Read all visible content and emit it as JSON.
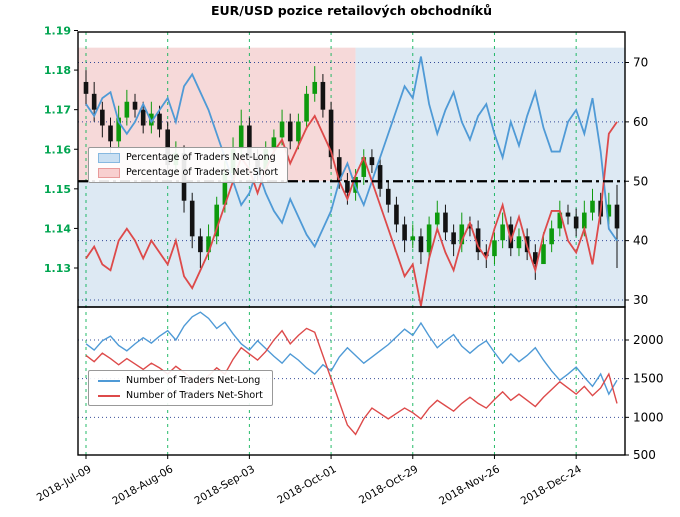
{
  "chart_data": {
    "type": "candlestick+line",
    "title": "EUR/USD pozice retailových obchodníků",
    "x_ticks": {
      "indices": [
        0,
        10,
        20,
        30,
        40,
        50,
        60
      ],
      "labels": [
        "2018-Jul-09",
        "2018-Aug-06",
        "2018-Sep-03",
        "2018-Oct-01",
        "2018-Oct-29",
        "2018-Nov-26",
        "2018-Dec-24"
      ]
    },
    "grid": {
      "v_color": "#00b050",
      "h_color": "#223a8f"
    },
    "top_panel": {
      "price_axis": {
        "side": "left",
        "tick_labels": [
          "1.19",
          "1.18",
          "1.17",
          "1.16",
          "1.15",
          "1.14",
          "1.13"
        ],
        "range": [
          1.12,
          1.19
        ],
        "color": "#00a550"
      },
      "pct_axis": {
        "side": "right",
        "tick_labels": [
          "70",
          "60",
          "50",
          "40",
          "30"
        ],
        "range": [
          30,
          70
        ]
      },
      "threshold": 50,
      "shading": {
        "split_index": 33,
        "above_left": "#f6d9d9",
        "above_right": "#dde9f3",
        "below": "#dde9f3"
      },
      "candles": {
        "up_color": "#0d9a0d",
        "down_color": "#131313",
        "open": [
          1.177,
          1.174,
          1.17,
          1.166,
          1.162,
          1.168,
          1.172,
          1.17,
          1.166,
          1.169,
          1.165,
          1.156,
          1.159,
          1.147,
          1.138,
          1.134,
          1.138,
          1.146,
          1.154,
          1.16,
          1.166,
          1.158,
          1.155,
          1.16,
          1.163,
          1.167,
          1.162,
          1.167,
          1.174,
          1.177,
          1.17,
          1.158,
          1.152,
          1.149,
          1.153,
          1.158,
          1.156,
          1.15,
          1.146,
          1.141,
          1.137,
          1.138,
          1.134,
          1.141,
          1.144,
          1.139,
          1.136,
          1.141,
          1.14,
          1.134,
          1.133,
          1.137,
          1.141,
          1.135,
          1.138,
          1.134,
          1.131,
          1.136,
          1.14,
          1.144,
          1.143,
          1.14,
          1.144,
          1.147,
          1.143,
          1.146
        ],
        "high": [
          1.18,
          1.177,
          1.172,
          1.168,
          1.171,
          1.175,
          1.174,
          1.172,
          1.172,
          1.171,
          1.167,
          1.162,
          1.161,
          1.149,
          1.14,
          1.141,
          1.148,
          1.157,
          1.163,
          1.17,
          1.168,
          1.16,
          1.162,
          1.165,
          1.17,
          1.169,
          1.169,
          1.176,
          1.181,
          1.179,
          1.172,
          1.16,
          1.154,
          1.155,
          1.16,
          1.16,
          1.158,
          1.152,
          1.148,
          1.143,
          1.141,
          1.14,
          1.143,
          1.147,
          1.146,
          1.141,
          1.144,
          1.143,
          1.142,
          1.136,
          1.139,
          1.144,
          1.143,
          1.14,
          1.14,
          1.136,
          1.139,
          1.142,
          1.147,
          1.146,
          1.145,
          1.147,
          1.15,
          1.149,
          1.149,
          1.151
        ],
        "low": [
          1.171,
          1.167,
          1.163,
          1.159,
          1.16,
          1.166,
          1.168,
          1.164,
          1.164,
          1.163,
          1.153,
          1.154,
          1.144,
          1.135,
          1.13,
          1.132,
          1.136,
          1.144,
          1.152,
          1.158,
          1.156,
          1.152,
          1.153,
          1.158,
          1.161,
          1.16,
          1.16,
          1.165,
          1.172,
          1.168,
          1.155,
          1.15,
          1.146,
          1.147,
          1.151,
          1.154,
          1.148,
          1.144,
          1.139,
          1.134,
          1.135,
          1.131,
          1.132,
          1.139,
          1.137,
          1.133,
          1.134,
          1.138,
          1.132,
          1.13,
          1.131,
          1.135,
          1.133,
          1.133,
          1.132,
          1.127,
          1.132,
          1.134,
          1.138,
          1.141,
          1.138,
          1.138,
          1.142,
          1.141,
          1.141,
          1.13
        ],
        "close": [
          1.174,
          1.17,
          1.166,
          1.162,
          1.168,
          1.172,
          1.17,
          1.166,
          1.169,
          1.165,
          1.156,
          1.159,
          1.147,
          1.138,
          1.134,
          1.138,
          1.146,
          1.154,
          1.16,
          1.166,
          1.158,
          1.155,
          1.16,
          1.163,
          1.167,
          1.162,
          1.167,
          1.174,
          1.177,
          1.17,
          1.158,
          1.152,
          1.149,
          1.153,
          1.158,
          1.156,
          1.15,
          1.146,
          1.141,
          1.137,
          1.138,
          1.134,
          1.141,
          1.144,
          1.139,
          1.136,
          1.141,
          1.14,
          1.134,
          1.133,
          1.137,
          1.141,
          1.135,
          1.138,
          1.134,
          1.131,
          1.136,
          1.14,
          1.144,
          1.143,
          1.14,
          1.144,
          1.147,
          1.143,
          1.146,
          1.14
        ]
      },
      "pct_net_long": {
        "label": "Percentage of Traders Net-Long",
        "color": "#4f9ad6",
        "fill": "#c9dff2",
        "edge": "#86b8e0",
        "values": [
          63,
          61,
          64,
          65,
          60,
          58,
          60,
          63,
          60,
          62,
          64,
          60,
          66,
          68,
          65,
          62,
          58,
          54,
          50,
          46,
          48,
          52,
          48,
          45,
          43,
          47,
          44,
          41,
          39,
          42,
          45,
          50,
          53,
          49,
          46,
          50,
          54,
          58,
          62,
          66,
          64,
          71,
          63,
          58,
          62,
          65,
          60,
          57,
          61,
          63,
          58,
          54,
          60,
          56,
          61,
          65,
          59,
          55,
          55,
          60,
          62,
          58,
          64,
          55,
          42,
          40
        ]
      },
      "pct_net_short": {
        "label": "Percentage of Traders Net-Short",
        "color": "#dd4a4a",
        "fill": "#f8cfcf",
        "edge": "#e89a9a",
        "values": [
          37,
          39,
          36,
          35,
          40,
          42,
          40,
          37,
          40,
          38,
          36,
          40,
          34,
          32,
          35,
          38,
          42,
          46,
          50,
          54,
          52,
          48,
          52,
          55,
          57,
          53,
          56,
          59,
          61,
          58,
          55,
          50,
          47,
          51,
          54,
          50,
          46,
          42,
          38,
          34,
          36,
          29,
          37,
          42,
          38,
          35,
          40,
          43,
          39,
          37,
          42,
          46,
          40,
          44,
          39,
          35,
          41,
          45,
          45,
          40,
          38,
          42,
          36,
          45,
          58,
          60
        ]
      }
    },
    "bottom_panel": {
      "count_axis": {
        "side": "right",
        "tick_labels": [
          "2000",
          "1500",
          "1000",
          "500"
        ],
        "range": [
          500,
          2430
        ]
      },
      "num_net_long": {
        "label": "Number of Traders Net-Long",
        "color": "#4f9ad6",
        "values": [
          1950,
          1870,
          1990,
          2050,
          1930,
          1860,
          1950,
          2030,
          1960,
          2050,
          2120,
          2000,
          2180,
          2300,
          2360,
          2280,
          2150,
          2230,
          2080,
          1950,
          1870,
          1990,
          1890,
          1790,
          1700,
          1820,
          1740,
          1640,
          1560,
          1680,
          1600,
          1780,
          1900,
          1800,
          1700,
          1780,
          1860,
          1940,
          2040,
          2140,
          2060,
          2220,
          2050,
          1900,
          1990,
          2070,
          1920,
          1830,
          1920,
          1990,
          1840,
          1700,
          1820,
          1720,
          1800,
          1900,
          1740,
          1600,
          1480,
          1560,
          1650,
          1520,
          1400,
          1560,
          1300,
          1480
        ]
      },
      "num_net_short": {
        "label": "Number of Traders Net-Short",
        "color": "#dd4a4a",
        "values": [
          1800,
          1720,
          1830,
          1760,
          1680,
          1760,
          1690,
          1620,
          1700,
          1640,
          1560,
          1660,
          1580,
          1500,
          1420,
          1540,
          1640,
          1560,
          1750,
          1900,
          1820,
          1740,
          1850,
          2000,
          2120,
          1950,
          2060,
          2150,
          2100,
          1800,
          1500,
          1200,
          900,
          780,
          980,
          1120,
          1050,
          980,
          1050,
          1120,
          1060,
          980,
          1120,
          1220,
          1150,
          1080,
          1180,
          1260,
          1180,
          1120,
          1230,
          1330,
          1220,
          1300,
          1220,
          1140,
          1260,
          1360,
          1460,
          1380,
          1300,
          1400,
          1280,
          1380,
          1560,
          1180
        ]
      }
    }
  }
}
